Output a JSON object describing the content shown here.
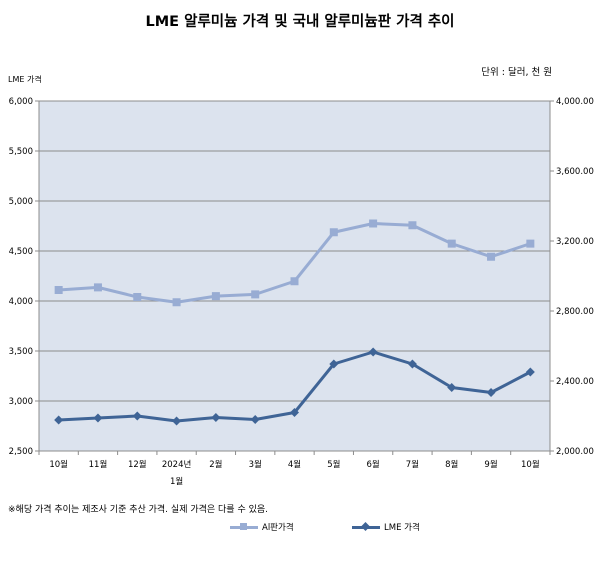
{
  "header": {
    "title": "LME 알루미늄 가격 및 국내 알루미늄판 가격 추이",
    "unit": "단위 : 달러, 천 원",
    "ylabel_left": "LME 가격",
    "note": "※해당 가격 추이는 제조사 기준 추산 가격. 실제 가격은 다를 수 있음."
  },
  "chart_data": {
    "type": "line",
    "title": "LME 알루미늄 가격 및 국내 알루미늄판 가격 추이",
    "ylabel": "LME 가격",
    "categories": [
      "10월",
      "11월",
      "12월",
      "2024년\n1월",
      "2월",
      "3월",
      "4월",
      "5월",
      "6월",
      "7월",
      "8월",
      "9월",
      "10월"
    ],
    "ylim": [
      2500,
      6000
    ],
    "y2lim": [
      2000,
      4000
    ],
    "yticks": [
      "2,500",
      "3,000",
      "3,500",
      "4,000",
      "4,500",
      "5,000",
      "5,500",
      "6,000"
    ],
    "y2ticks": [
      "2,000.00",
      "2,400.00",
      "2,800.00",
      "3,200.00",
      "3,600.00",
      "4,000.00"
    ],
    "grid": true,
    "legend_position": "bottom",
    "series": [
      {
        "name": "Al판가격",
        "axis": "right",
        "marker": "square",
        "color": "#98acd3",
        "values": [
          2920,
          2935,
          2880,
          2850,
          2885,
          2895,
          2970,
          3250,
          3300,
          3290,
          3185,
          3110,
          3185
        ]
      },
      {
        "name": "LME 가격",
        "axis": "left",
        "marker": "diamond",
        "color": "#3f6496",
        "values": [
          2810,
          2830,
          2850,
          2800,
          2835,
          2815,
          2885,
          3370,
          3490,
          3370,
          3135,
          3085,
          3290
        ]
      }
    ],
    "plot_bg": "#dce3ee"
  }
}
